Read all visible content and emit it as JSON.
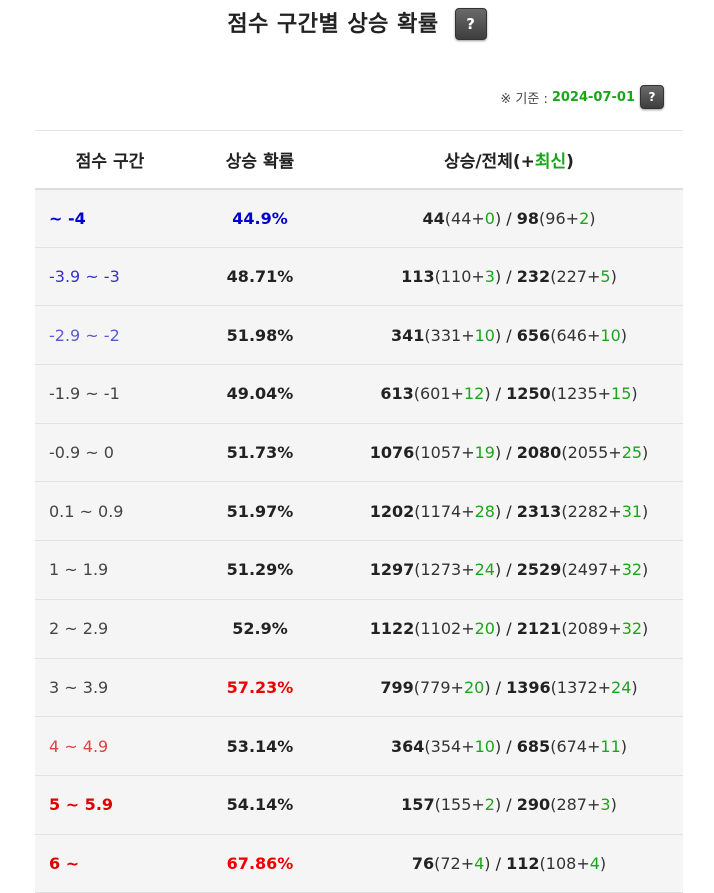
{
  "title": "점수 구간별 상승 확률",
  "help_icon": "?",
  "basis": {
    "label": "※ 기준 :",
    "date": "2024-07-01"
  },
  "columns": {
    "range": "점수 구간",
    "prob": "상승 확률",
    "ratio_prefix": "상승/전체(+",
    "ratio_green": "최신",
    "ratio_suffix": ")"
  },
  "rows": [
    {
      "range": "~ -4",
      "prob": "44.9%",
      "up": "44",
      "up_base": "44",
      "up_new": "0",
      "total": "98",
      "total_base": "96",
      "total_new": "2"
    },
    {
      "range": "-3.9 ~ -3",
      "prob": "48.71%",
      "up": "113",
      "up_base": "110",
      "up_new": "3",
      "total": "232",
      "total_base": "227",
      "total_new": "5"
    },
    {
      "range": "-2.9 ~ -2",
      "prob": "51.98%",
      "up": "341",
      "up_base": "331",
      "up_new": "10",
      "total": "656",
      "total_base": "646",
      "total_new": "10"
    },
    {
      "range": "-1.9 ~ -1",
      "prob": "49.04%",
      "up": "613",
      "up_base": "601",
      "up_new": "12",
      "total": "1250",
      "total_base": "1235",
      "total_new": "15"
    },
    {
      "range": "-0.9 ~ 0",
      "prob": "51.73%",
      "up": "1076",
      "up_base": "1057",
      "up_new": "19",
      "total": "2080",
      "total_base": "2055",
      "total_new": "25"
    },
    {
      "range": "0.1 ~ 0.9",
      "prob": "51.97%",
      "up": "1202",
      "up_base": "1174",
      "up_new": "28",
      "total": "2313",
      "total_base": "2282",
      "total_new": "31"
    },
    {
      "range": "1 ~ 1.9",
      "prob": "51.29%",
      "up": "1297",
      "up_base": "1273",
      "up_new": "24",
      "total": "2529",
      "total_base": "2497",
      "total_new": "32"
    },
    {
      "range": "2 ~ 2.9",
      "prob": "52.9%",
      "up": "1122",
      "up_base": "1102",
      "up_new": "20",
      "total": "2121",
      "total_base": "2089",
      "total_new": "32"
    },
    {
      "range": "3 ~ 3.9",
      "prob": "57.23%",
      "up": "799",
      "up_base": "779",
      "up_new": "20",
      "total": "1396",
      "total_base": "1372",
      "total_new": "24"
    },
    {
      "range": "4 ~ 4.9",
      "prob": "53.14%",
      "up": "364",
      "up_base": "354",
      "up_new": "10",
      "total": "685",
      "total_base": "674",
      "total_new": "11"
    },
    {
      "range": "5 ~ 5.9",
      "prob": "54.14%",
      "up": "157",
      "up_base": "155",
      "up_new": "2",
      "total": "290",
      "total_base": "287",
      "total_new": "3"
    },
    {
      "range": "6 ~",
      "prob": "67.86%",
      "up": "76",
      "up_base": "72",
      "up_new": "4",
      "total": "112",
      "total_base": "108",
      "total_new": "4"
    }
  ]
}
